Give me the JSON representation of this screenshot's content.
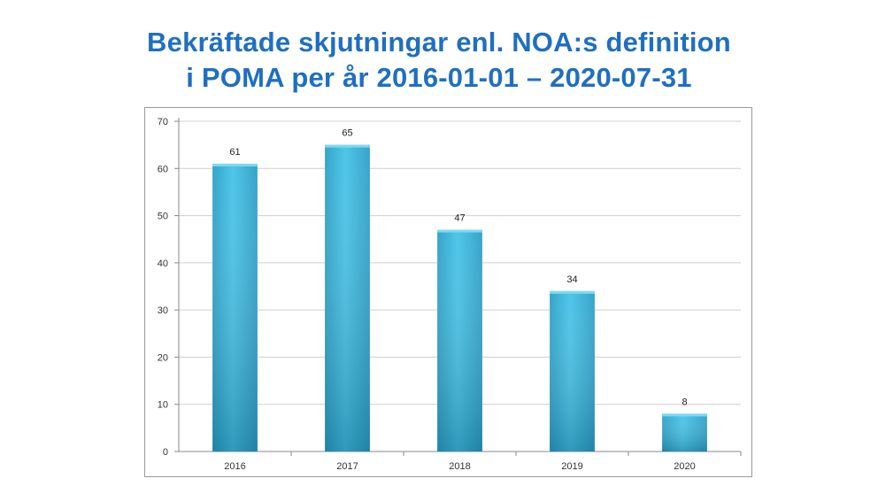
{
  "title": {
    "line1": "Bekräftade skjutningar enl. NOA:s definition",
    "line2": "i POMA per år 2016-01-01 – 2020-07-31"
  },
  "chart_data": {
    "type": "bar",
    "title": "Bekräftade skjutningar enl. NOA:s definition i POMA per år 2016-01-01 – 2020-07-31",
    "categories": [
      "2016",
      "2017",
      "2018",
      "2019",
      "2020"
    ],
    "values": [
      61,
      65,
      47,
      34,
      8
    ],
    "data_labels": [
      "61",
      "65",
      "47",
      "34",
      "8"
    ],
    "ylim": [
      0,
      70
    ],
    "yticks": [
      0,
      10,
      20,
      30,
      40,
      50,
      60,
      70
    ],
    "xlabel": "",
    "ylabel": "",
    "grid": true,
    "legend": "none",
    "bar_color": "#3fb9df",
    "bar_color_dark": "#1a8fb5"
  }
}
